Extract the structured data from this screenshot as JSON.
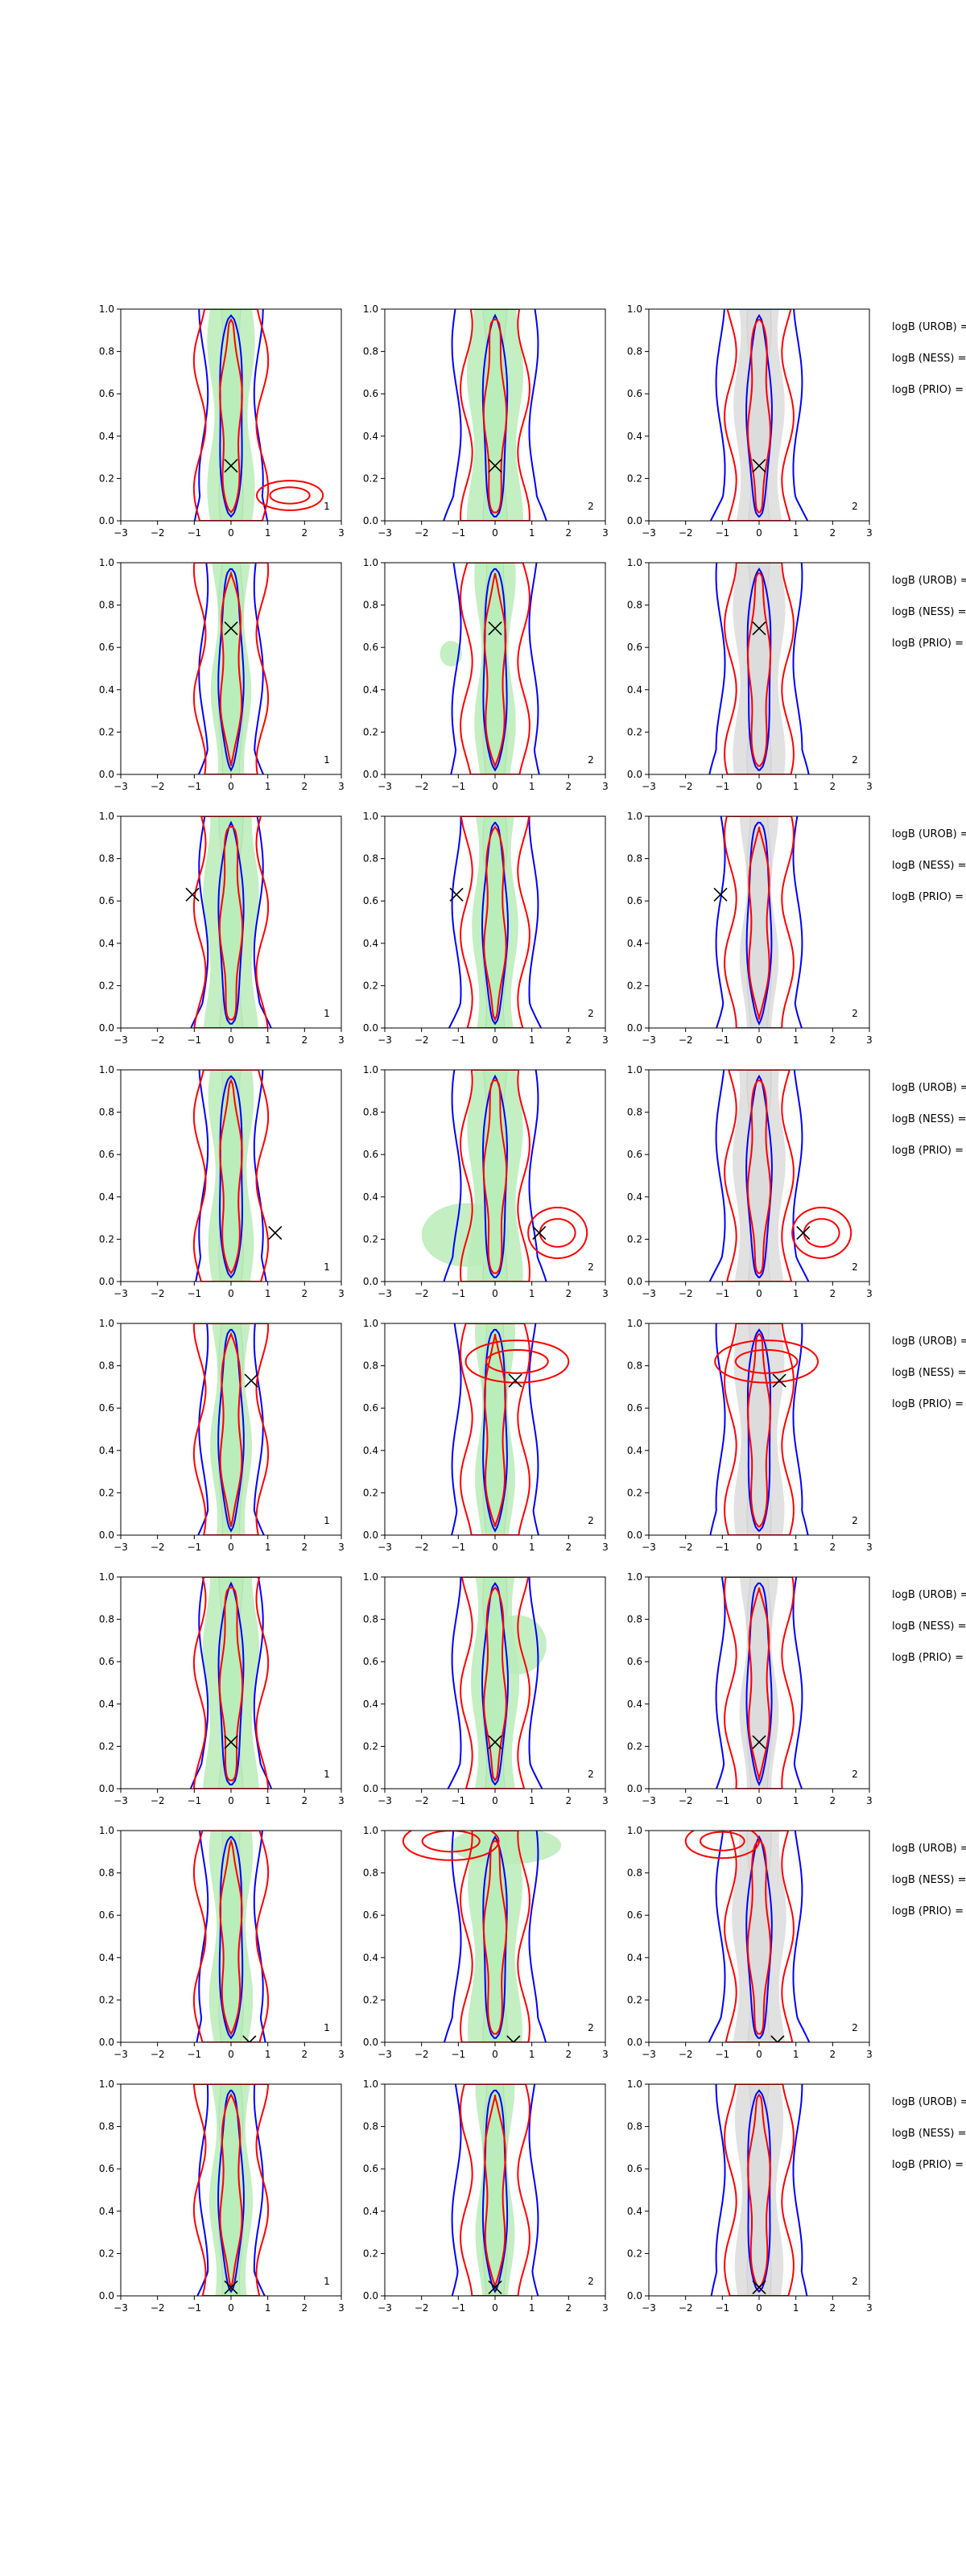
{
  "figure": {
    "side_labels": [
      "logB (UROB) =",
      "logB (NESS) =",
      "logB (PRIO) ="
    ]
  },
  "chart_data": {
    "type": "contour",
    "layout": {
      "rows": 8,
      "cols": 3
    },
    "xlim": [
      -3,
      3
    ],
    "ylim": [
      0.0,
      1.0
    ],
    "xticks": [
      "−3",
      "−2",
      "−1",
      "0",
      "1",
      "2",
      "3"
    ],
    "yticks": [
      "0.0",
      "0.2",
      "0.4",
      "0.6",
      "0.8",
      "1.0"
    ],
    "grid": false,
    "colors": {
      "blue_contour": "#0000ff",
      "red_contour": "#ff0000",
      "fill_col1": "#b8ecb8",
      "fill_col2": "#b8ecb8",
      "fill_col3": "#dcdcdc"
    },
    "column_corner_labels": [
      "1",
      "2",
      "2"
    ],
    "truth_markers": [
      {
        "x": 0.0,
        "y": 0.26
      },
      {
        "x": 0.0,
        "y": 0.69
      },
      {
        "x": -1.05,
        "y": 0.63
      },
      {
        "x": 1.2,
        "y": 0.23
      },
      {
        "x": 0.55,
        "y": 0.73
      },
      {
        "x": 0.0,
        "y": 0.22
      },
      {
        "x": 0.5,
        "y": 0.0
      },
      {
        "x": 0.0,
        "y": 0.04
      }
    ],
    "extra_red_lobes": [
      {
        "row": 0,
        "col": 0,
        "cx": 1.6,
        "cy": 0.12,
        "rx": 0.9,
        "ry": 0.07
      },
      {
        "row": 3,
        "col": 1,
        "cx": 1.7,
        "cy": 0.23,
        "rx": 0.8,
        "ry": 0.12
      },
      {
        "row": 3,
        "col": 2,
        "cx": 1.7,
        "cy": 0.23,
        "rx": 0.8,
        "ry": 0.12
      },
      {
        "row": 4,
        "col": 1,
        "cx": 0.6,
        "cy": 0.82,
        "rx": 1.4,
        "ry": 0.1
      },
      {
        "row": 4,
        "col": 2,
        "cx": 0.2,
        "cy": 0.82,
        "rx": 1.4,
        "ry": 0.1
      },
      {
        "row": 6,
        "col": 1,
        "cx": -1.2,
        "cy": 0.95,
        "rx": 1.3,
        "ry": 0.09
      },
      {
        "row": 6,
        "col": 2,
        "cx": -1.0,
        "cy": 0.95,
        "rx": 1.0,
        "ry": 0.08
      }
    ],
    "extra_fill_blobs": [
      {
        "row": 3,
        "col": 1,
        "cx": -0.8,
        "cy": 0.22,
        "rx": 1.2,
        "ry": 0.15
      },
      {
        "row": 5,
        "col": 1,
        "cx": 0.6,
        "cy": 0.68,
        "rx": 0.8,
        "ry": 0.14
      },
      {
        "row": 6,
        "col": 1,
        "cx": 0.3,
        "cy": 0.93,
        "rx": 1.5,
        "ry": 0.09
      },
      {
        "row": 1,
        "col": 1,
        "cx": -1.2,
        "cy": 0.57,
        "rx": 0.3,
        "ry": 0.06
      }
    ]
  }
}
